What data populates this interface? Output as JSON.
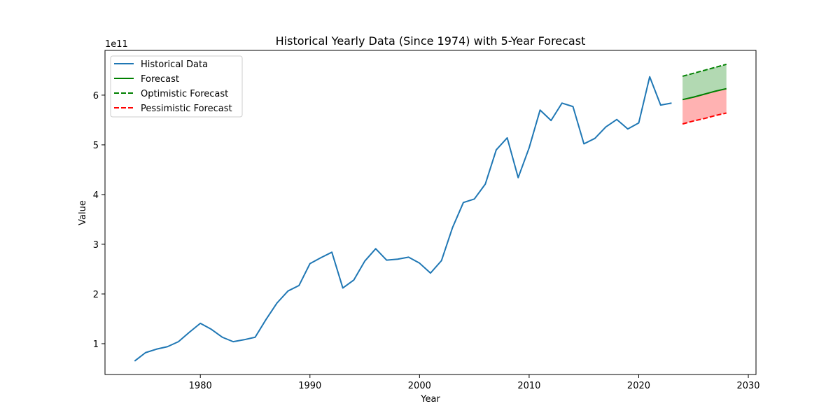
{
  "chart_data": {
    "type": "line",
    "title": "Historical Yearly Data (Since 1974) with 5-Year Forecast",
    "xlabel": "Year",
    "ylabel": "Value",
    "y_scale_label": "1e11",
    "y_multiplier": 100000000000.0,
    "xlim": [
      1971.3,
      2030.7
    ],
    "ylim": [
      0.38,
      6.9
    ],
    "x_ticks": [
      1980,
      1990,
      2000,
      2010,
      2020,
      2030
    ],
    "y_ticks": [
      1,
      2,
      3,
      4,
      5,
      6
    ],
    "legend_position": "top-left",
    "grid": false,
    "series": [
      {
        "name": "Historical Data",
        "color": "#1f77b4",
        "style": "solid",
        "x": [
          1974,
          1975,
          1976,
          1977,
          1978,
          1979,
          1980,
          1981,
          1982,
          1983,
          1984,
          1985,
          1986,
          1987,
          1988,
          1989,
          1990,
          1991,
          1992,
          1993,
          1994,
          1995,
          1996,
          1997,
          1998,
          1999,
          2000,
          2001,
          2002,
          2003,
          2004,
          2005,
          2006,
          2007,
          2008,
          2009,
          2010,
          2011,
          2012,
          2013,
          2014,
          2015,
          2016,
          2017,
          2018,
          2019,
          2020,
          2021,
          2022,
          2023
        ],
        "y": [
          0.65,
          0.82,
          0.89,
          0.94,
          1.04,
          1.23,
          1.41,
          1.29,
          1.13,
          1.04,
          1.08,
          1.13,
          1.49,
          1.82,
          2.06,
          2.17,
          2.61,
          2.73,
          2.84,
          2.12,
          2.28,
          2.66,
          2.91,
          2.68,
          2.7,
          2.74,
          2.62,
          2.42,
          2.67,
          3.33,
          3.84,
          3.91,
          4.21,
          4.9,
          5.14,
          4.34,
          4.94,
          5.7,
          5.49,
          5.84,
          5.77,
          5.02,
          5.13,
          5.36,
          5.51,
          5.32,
          5.44,
          6.37,
          5.8,
          5.84
        ]
      },
      {
        "name": "Forecast",
        "color": "#008000",
        "style": "solid",
        "x": [
          2024,
          2025,
          2026,
          2027,
          2028
        ],
        "y": [
          5.91,
          5.96,
          6.02,
          6.08,
          6.13
        ]
      },
      {
        "name": "Optimistic Forecast",
        "color": "#008000",
        "style": "dashed",
        "x": [
          2024,
          2025,
          2026,
          2027,
          2028
        ],
        "y": [
          6.38,
          6.44,
          6.5,
          6.56,
          6.62
        ]
      },
      {
        "name": "Pessimistic Forecast",
        "color": "#ff0000",
        "style": "dashed",
        "x": [
          2024,
          2025,
          2026,
          2027,
          2028
        ],
        "y": [
          5.42,
          5.48,
          5.53,
          5.59,
          5.64
        ]
      }
    ],
    "bands": [
      {
        "between": [
          "Forecast",
          "Optimistic Forecast"
        ],
        "color": "#008000",
        "opacity": 0.3
      },
      {
        "between": [
          "Pessimistic Forecast",
          "Forecast"
        ],
        "color": "#ff0000",
        "opacity": 0.3
      }
    ]
  }
}
